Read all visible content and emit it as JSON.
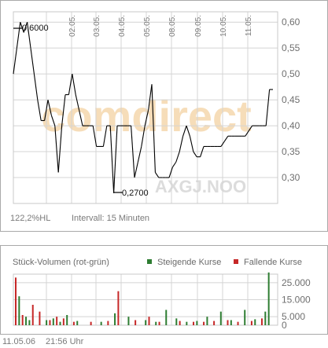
{
  "price_panel": {
    "watermark_word": "comdirect",
    "symbol_watermark": "AXGJ.NOO",
    "high_label": "0,6000",
    "low_label": "0,2700",
    "range_info": "122,2%HL",
    "interval_label": "Intervall: 15 Minuten"
  },
  "volume_panel": {
    "title": "Stück-Volumen (rot-grün)",
    "legend_up": "Steigende Kurse",
    "legend_down": "Fallende Kurse"
  },
  "footer": {
    "date": "11.05.06",
    "time": "21:56 Uhr"
  },
  "colors": {
    "up": "#2e7d32",
    "down": "#c62828",
    "line": "#000000",
    "grid": "#d4d4d4",
    "watermark": "#f3d2a2",
    "watermark2": "#dcdcdc"
  },
  "chart_data": [
    {
      "type": "line",
      "title": "",
      "x_tick_labels": [
        "02.05.",
        "03.05.",
        "04.05.",
        "05.05.",
        "08.05.",
        "09.05.",
        "10.05.",
        "11.05."
      ],
      "y_ticks": [
        "0,60",
        "0,55",
        "0,50",
        "0,45",
        "0,40",
        "0,35",
        "0,30"
      ],
      "ylim": [
        0.25,
        0.62
      ],
      "grid": true,
      "x_count": 76,
      "series": [
        {
          "x": [
            0,
            1,
            2,
            3,
            4,
            5,
            6,
            7,
            8,
            9,
            10,
            11,
            12,
            13,
            14,
            15,
            16,
            17,
            18,
            19,
            20,
            21,
            22,
            23,
            24,
            25,
            26,
            27,
            28,
            29,
            30,
            31,
            32,
            33,
            34,
            35,
            36,
            37,
            38,
            39,
            40,
            41,
            42,
            43,
            44,
            45,
            46,
            47,
            48,
            49,
            50,
            51,
            52,
            53,
            54,
            55,
            56,
            57,
            58,
            59,
            60,
            61,
            62,
            63,
            64,
            65,
            66,
            67,
            68,
            69,
            70,
            71,
            72,
            73,
            74,
            75
          ],
          "y": [
            0.5,
            0.55,
            0.6,
            0.58,
            0.6,
            0.55,
            0.5,
            0.45,
            0.41,
            0.41,
            0.45,
            0.42,
            0.4,
            0.31,
            0.4,
            0.46,
            0.46,
            0.5,
            0.46,
            0.43,
            0.4,
            0.4,
            0.4,
            0.4,
            0.36,
            0.36,
            0.36,
            0.4,
            0.4,
            0.27,
            0.4,
            0.4,
            0.4,
            0.4,
            0.4,
            0.3,
            0.33,
            0.36,
            0.4,
            0.43,
            0.48,
            0.31,
            0.3,
            0.3,
            0.3,
            0.3,
            0.32,
            0.33,
            0.35,
            0.38,
            0.4,
            0.38,
            0.35,
            0.34,
            0.34,
            0.36,
            0.36,
            0.36,
            0.36,
            0.36,
            0.36,
            0.37,
            0.38,
            0.38,
            0.38,
            0.38,
            0.38,
            0.38,
            0.39,
            0.4,
            0.4,
            0.4,
            0.4,
            0.4,
            0.47,
            0.47
          ]
        }
      ]
    },
    {
      "type": "bar",
      "title": "Stück-Volumen (rot-grün)",
      "y_ticks": [
        "25.000",
        "15.000",
        "5.000",
        "0"
      ],
      "ylim": [
        0,
        30000
      ],
      "x_count": 76,
      "series": [
        {
          "name": "Steigende Kurse",
          "x": [
            1,
            3,
            4,
            9,
            11,
            13,
            15,
            18,
            25,
            29,
            33,
            38,
            41,
            44,
            47,
            50,
            53,
            56,
            60,
            63,
            67,
            70,
            73,
            74
          ],
          "values": [
            17000,
            5000,
            3000,
            3000,
            4000,
            2000,
            6000,
            2500,
            2000,
            7000,
            5000,
            3000,
            2000,
            9000,
            4000,
            2000,
            2500,
            5000,
            8000,
            3000,
            9000,
            3500,
            8000,
            31000
          ]
        },
        {
          "name": "Fallende Kurse",
          "x": [
            0,
            2,
            5,
            7,
            10,
            12,
            14,
            17,
            22,
            27,
            30,
            35,
            39,
            42,
            48,
            52,
            55,
            58,
            62,
            65,
            69,
            72
          ],
          "values": [
            28000,
            6000,
            12000,
            8000,
            3000,
            5000,
            4000,
            2000,
            2000,
            2500,
            20000,
            3000,
            5000,
            2000,
            2500,
            2000,
            2000,
            2500,
            3000,
            2000,
            2500,
            4000
          ]
        }
      ]
    }
  ]
}
